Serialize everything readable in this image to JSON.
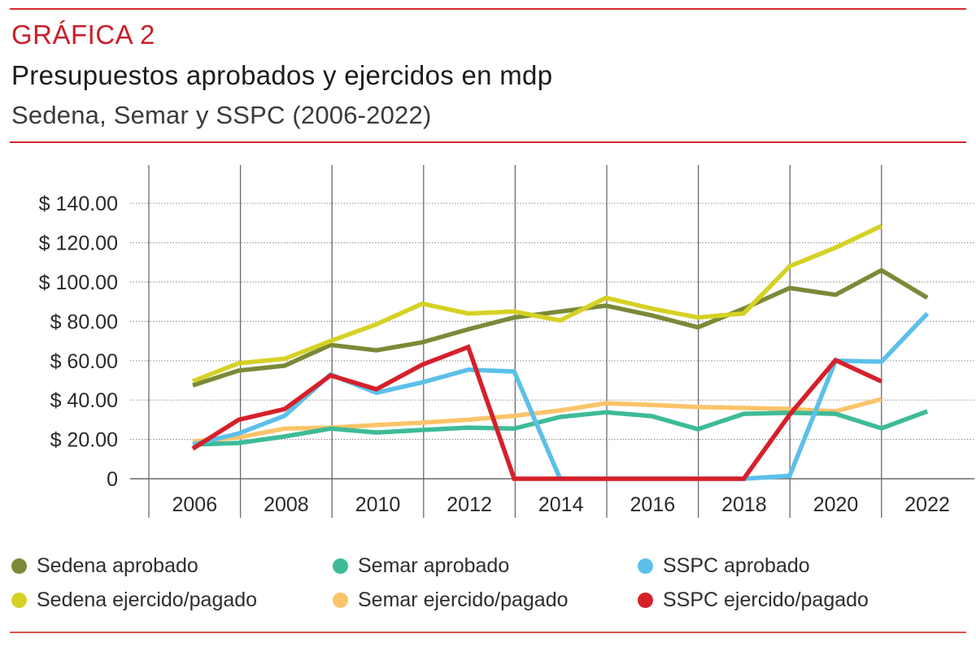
{
  "header": {
    "kicker": "GRÁFICA 2",
    "title": "Presupuestos aprobados y ejercidos en mdp",
    "subtitle": "Sedena, Semar y SSPC (2006-2022)"
  },
  "colors": {
    "accent": "#d4282f",
    "grid": "#9a9a9a",
    "axis": "#6a6a6a"
  },
  "chart_data": {
    "type": "line",
    "title": "Presupuestos aprobados y ejercidos en mdp",
    "subtitle": "Sedena, Semar y SSPC (2006-2022)",
    "xlabel": "",
    "ylabel": "",
    "x": [
      2006,
      2007,
      2008,
      2009,
      2010,
      2011,
      2012,
      2013,
      2014,
      2015,
      2016,
      2017,
      2018,
      2019,
      2020,
      2021,
      2022
    ],
    "x_tick_labels": [
      "2006",
      "2008",
      "2010",
      "2012",
      "2014",
      "2016",
      "2018",
      "2020",
      "2022"
    ],
    "y_ticks": [
      0,
      20,
      40,
      60,
      80,
      100,
      120,
      140
    ],
    "y_tick_labels": [
      "0",
      "$ 20.00",
      "$ 40.00",
      "$ 60.00",
      "$ 80.00",
      "$ 100.00",
      "$ 120.00",
      "$ 140.00"
    ],
    "ylim": [
      0,
      140
    ],
    "grid": true,
    "legend_position": "bottom",
    "series": [
      {
        "name": "Sedena aprobado",
        "color": "#7a8a38",
        "values": [
          47.5,
          55,
          57.5,
          68,
          65.3,
          69.4,
          76,
          82,
          85,
          88,
          83,
          77,
          86.5,
          97,
          93.5,
          106,
          92
        ]
      },
      {
        "name": "Semar aprobado",
        "color": "#3dbb98",
        "values": [
          17.4,
          18.2,
          21.5,
          25.5,
          23.5,
          24.8,
          26,
          25.5,
          31.4,
          33.8,
          31.8,
          25.2,
          33,
          33.5,
          33,
          25.6,
          34.3
        ]
      },
      {
        "name": "SSPC aprobado",
        "color": "#5bc0ea",
        "values": [
          17.4,
          23,
          32,
          53,
          43.7,
          49,
          55.4,
          54.5,
          0,
          0,
          0,
          0,
          0,
          1.5,
          60,
          59.5,
          84
        ]
      },
      {
        "name": "Sedena ejercido/pagado",
        "color": "#d6d125",
        "values": [
          49.6,
          58.7,
          61,
          70,
          78.5,
          89,
          84,
          85,
          80.5,
          92,
          86.5,
          82,
          84,
          108,
          117.5,
          128.5,
          null
        ]
      },
      {
        "name": "Semar ejercido/pagado",
        "color": "#fcc46a",
        "values": [
          19,
          21,
          25.5,
          26,
          27.3,
          28.5,
          30,
          32,
          34.7,
          38.4,
          37.5,
          36.5,
          36,
          35.5,
          34.3,
          40.5,
          null
        ]
      },
      {
        "name": "SSPC ejercido/pagado",
        "color": "#d5202a",
        "values": [
          15.3,
          30,
          35.4,
          52.5,
          45.5,
          58,
          67,
          0,
          0,
          0,
          0,
          0,
          0,
          32.6,
          60.3,
          49.5,
          null
        ]
      }
    ]
  }
}
